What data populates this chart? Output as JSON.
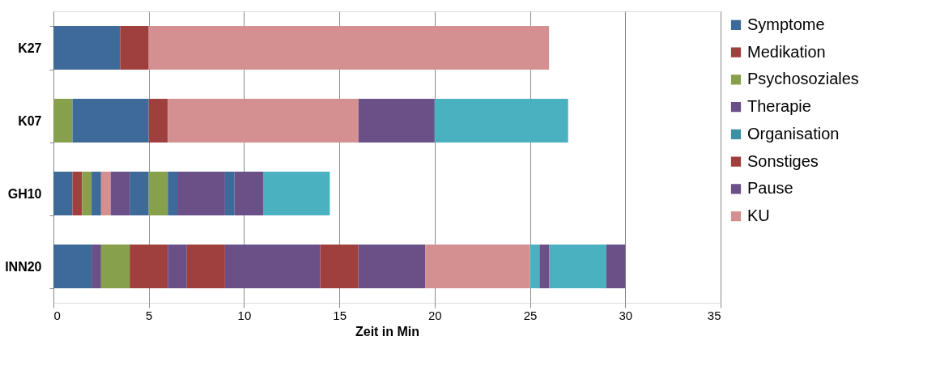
{
  "chart_data": {
    "type": "bar",
    "orientation": "horizontal",
    "stacked": true,
    "xlabel": "Zeit in Min",
    "categories": [
      "K27",
      "K07",
      "GH10",
      "INN20"
    ],
    "xlim": [
      0,
      35
    ],
    "xticks": [
      0,
      5,
      10,
      15,
      20,
      25,
      30,
      35
    ],
    "grid": "x",
    "legend": "right",
    "series": [
      {
        "name": "Symptome",
        "color": "#3e6a9a",
        "values": [
          null,
          null,
          null,
          null
        ]
      },
      {
        "name": "Medikation",
        "color": "#a0403e",
        "values": [
          null,
          null,
          null,
          null
        ]
      },
      {
        "name": "Psychosoziales",
        "color": "#86a04c",
        "values": [
          null,
          null,
          null,
          null
        ]
      },
      {
        "name": "Therapie",
        "color": "#6a5087",
        "values": [
          null,
          null,
          null,
          null
        ]
      },
      {
        "name": "Organisation",
        "color": "#3d8fa4",
        "values": [
          null,
          null,
          null,
          null
        ]
      },
      {
        "name": "Sonstiges",
        "color": "#a0403e",
        "values": [
          null,
          null,
          null,
          null
        ]
      },
      {
        "name": "Pause",
        "color": "#6a5087",
        "values": [
          null,
          null,
          null,
          null
        ]
      },
      {
        "name": "KU",
        "color": "#d49090",
        "values": [
          null,
          null,
          null,
          null
        ]
      },
      {
        "color": "#3e6a9a",
        "values": [
          3.5,
          null,
          null,
          null
        ]
      },
      {
        "color": "#a0403e",
        "values": [
          1.5,
          null,
          null,
          null
        ]
      },
      {
        "color": "#d49090",
        "values": [
          21,
          null,
          null,
          null
        ]
      },
      {
        "color": "#86a04c",
        "values": [
          null,
          1,
          null,
          null
        ]
      },
      {
        "color": "#3e6a9a",
        "values": [
          null,
          4,
          null,
          null
        ]
      },
      {
        "color": "#a0403e",
        "values": [
          null,
          1,
          null,
          null
        ]
      },
      {
        "color": "#d49090",
        "values": [
          null,
          10,
          null,
          null
        ]
      },
      {
        "color": "#6a5087",
        "values": [
          null,
          4,
          null,
          null
        ]
      },
      {
        "color": "#4ab1c0",
        "values": [
          null,
          7,
          null,
          null
        ]
      },
      {
        "color": "#3e6a9a",
        "values": [
          null,
          null,
          1,
          null
        ]
      },
      {
        "color": "#a0403e",
        "values": [
          null,
          null,
          0.5,
          null
        ]
      },
      {
        "color": "#86a04c",
        "values": [
          null,
          null,
          0.5,
          null
        ]
      },
      {
        "color": "#3e6a9a",
        "values": [
          null,
          null,
          0.5,
          null
        ]
      },
      {
        "color": "#d49090",
        "values": [
          null,
          null,
          0.5,
          null
        ]
      },
      {
        "color": "#6a5087",
        "values": [
          null,
          null,
          1,
          null
        ]
      },
      {
        "color": "#3e6a9a",
        "values": [
          null,
          null,
          1,
          null
        ]
      },
      {
        "color": "#86a04c",
        "values": [
          null,
          null,
          1,
          null
        ]
      },
      {
        "color": "#3e6a9a",
        "values": [
          null,
          null,
          0.5,
          null
        ]
      },
      {
        "color": "#6a5087",
        "values": [
          null,
          null,
          2.5,
          null
        ]
      },
      {
        "color": "#3e6a9a",
        "values": [
          null,
          null,
          0.5,
          null
        ]
      },
      {
        "color": "#6a5087",
        "values": [
          null,
          null,
          1.5,
          null
        ]
      },
      {
        "color": "#4ab1c0",
        "values": [
          null,
          null,
          3.5,
          null
        ]
      },
      {
        "color": "#3e6a9a",
        "values": [
          null,
          null,
          null,
          2
        ]
      },
      {
        "color": "#6a5087",
        "values": [
          null,
          null,
          null,
          0.5
        ]
      },
      {
        "color": "#86a04c",
        "values": [
          null,
          null,
          null,
          1.5
        ]
      },
      {
        "color": "#a0403e",
        "values": [
          null,
          null,
          null,
          2
        ]
      },
      {
        "color": "#6a5087",
        "values": [
          null,
          null,
          null,
          1
        ]
      },
      {
        "color": "#a0403e",
        "values": [
          null,
          null,
          null,
          2
        ]
      },
      {
        "color": "#6a5087",
        "values": [
          null,
          null,
          null,
          5
        ]
      },
      {
        "color": "#a0403e",
        "values": [
          null,
          null,
          null,
          2
        ]
      },
      {
        "color": "#6a5087",
        "values": [
          null,
          null,
          null,
          3.5
        ]
      },
      {
        "color": "#d49090",
        "values": [
          null,
          null,
          null,
          5.5
        ]
      },
      {
        "color": "#4ab1c0",
        "values": [
          null,
          null,
          null,
          0.5
        ]
      },
      {
        "color": "#6a5087",
        "values": [
          null,
          null,
          null,
          0.5
        ]
      },
      {
        "color": "#4ab1c0",
        "values": [
          null,
          null,
          null,
          3
        ]
      },
      {
        "color": "#6a5087",
        "values": [
          null,
          null,
          null,
          1
        ]
      }
    ]
  }
}
